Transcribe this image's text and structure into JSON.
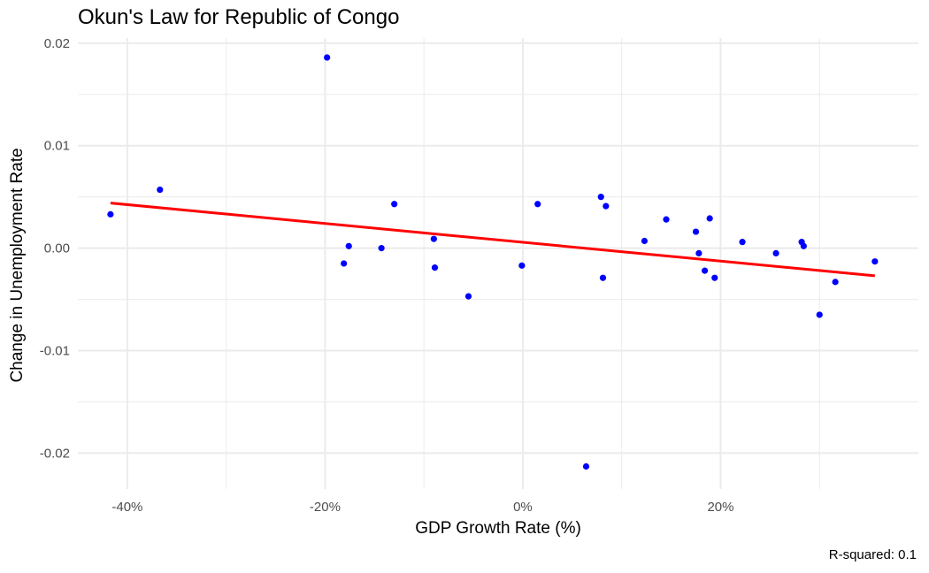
{
  "chart_data": {
    "type": "scatter",
    "title": "Okun's Law for Republic of Congo",
    "xlabel": "GDP Growth Rate (%)",
    "ylabel": "Change in Unemployment Rate",
    "caption": "R-squared: 0.1",
    "xlim": [
      -0.45,
      0.4
    ],
    "ylim": [
      -0.0235,
      0.0205
    ],
    "x_ticks": [
      -0.4,
      -0.2,
      0.0,
      0.2
    ],
    "x_tick_labels": [
      "-40%",
      "-20%",
      "0%",
      "20%"
    ],
    "y_ticks": [
      0.02,
      0.01,
      0.0,
      -0.01,
      -0.02
    ],
    "y_tick_labels": [
      "0.02",
      "0.01",
      "0.00",
      "-0.01",
      "-0.02"
    ],
    "grid": true,
    "colors": {
      "points": "#0000ff",
      "fit_line": "#ff0000",
      "grid": "#ebebeb"
    },
    "series": [
      {
        "type": "scatter",
        "x": [
          -0.417,
          -0.367,
          -0.198,
          -0.181,
          -0.176,
          -0.143,
          -0.13,
          -0.09,
          -0.089,
          -0.055,
          -0.001,
          0.015,
          0.064,
          0.079,
          0.081,
          0.084,
          0.123,
          0.145,
          0.175,
          0.178,
          0.184,
          0.189,
          0.194,
          0.222,
          0.256,
          0.282,
          0.284,
          0.3,
          0.316,
          0.356
        ],
        "y": [
          0.0033,
          0.0057,
          0.0186,
          -0.0015,
          0.0002,
          0.0,
          0.0043,
          0.0009,
          -0.0019,
          -0.0047,
          -0.0017,
          0.0043,
          -0.0213,
          0.005,
          -0.0029,
          0.0041,
          0.0007,
          0.0028,
          0.0016,
          -0.0005,
          -0.0022,
          0.0029,
          -0.0029,
          0.0006,
          -0.0005,
          0.0006,
          0.0002,
          -0.0065,
          -0.0033,
          -0.0013
        ]
      },
      {
        "type": "line",
        "x": [
          -0.417,
          0.356
        ],
        "y": [
          0.0044,
          -0.0027
        ]
      }
    ]
  }
}
